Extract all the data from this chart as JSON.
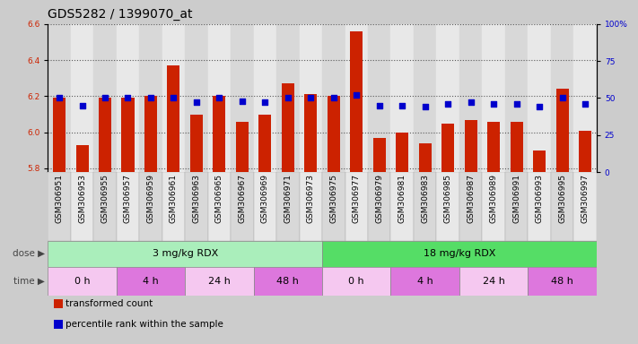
{
  "title": "GDS5282 / 1399070_at",
  "samples": [
    "GSM306951",
    "GSM306953",
    "GSM306955",
    "GSM306957",
    "GSM306959",
    "GSM306961",
    "GSM306963",
    "GSM306965",
    "GSM306967",
    "GSM306969",
    "GSM306971",
    "GSM306973",
    "GSM306975",
    "GSM306977",
    "GSM306979",
    "GSM306981",
    "GSM306983",
    "GSM306985",
    "GSM306987",
    "GSM306989",
    "GSM306991",
    "GSM306993",
    "GSM306995",
    "GSM306997"
  ],
  "bar_values": [
    6.19,
    5.93,
    6.19,
    6.19,
    6.2,
    6.37,
    6.1,
    6.2,
    6.06,
    6.1,
    6.27,
    6.21,
    6.2,
    6.56,
    5.97,
    6.0,
    5.94,
    6.05,
    6.07,
    6.06,
    6.06,
    5.9,
    6.24,
    6.01
  ],
  "dot_values": [
    50,
    45,
    50,
    50,
    50,
    50,
    47,
    50,
    48,
    47,
    50,
    50,
    50,
    52,
    45,
    45,
    44,
    46,
    47,
    46,
    46,
    44,
    50,
    46
  ],
  "ylim_left": [
    5.78,
    6.6
  ],
  "ylim_right": [
    0,
    100
  ],
  "yticks_left": [
    5.8,
    6.0,
    6.2,
    6.4,
    6.6
  ],
  "yticks_right": [
    0,
    25,
    50,
    75,
    100
  ],
  "ytick_labels_right": [
    "0",
    "25",
    "50",
    "75",
    "100%"
  ],
  "bar_color": "#cc2200",
  "dot_color": "#0000cc",
  "dose_groups": [
    {
      "label": "3 mg/kg RDX",
      "start": 0,
      "end": 12,
      "color": "#aaeebb"
    },
    {
      "label": "18 mg/kg RDX",
      "start": 12,
      "end": 24,
      "color": "#55dd66"
    }
  ],
  "time_groups": [
    {
      "label": "0 h",
      "start": 0,
      "end": 3,
      "color": "#f5c8f0"
    },
    {
      "label": "4 h",
      "start": 3,
      "end": 6,
      "color": "#dd77dd"
    },
    {
      "label": "24 h",
      "start": 6,
      "end": 9,
      "color": "#f5c8f0"
    },
    {
      "label": "48 h",
      "start": 9,
      "end": 12,
      "color": "#dd77dd"
    },
    {
      "label": "0 h",
      "start": 12,
      "end": 15,
      "color": "#f5c8f0"
    },
    {
      "label": "4 h",
      "start": 15,
      "end": 18,
      "color": "#dd77dd"
    },
    {
      "label": "24 h",
      "start": 18,
      "end": 21,
      "color": "#f5c8f0"
    },
    {
      "label": "48 h",
      "start": 21,
      "end": 24,
      "color": "#dd77dd"
    }
  ],
  "legend_items": [
    {
      "label": "transformed count",
      "color": "#cc2200"
    },
    {
      "label": "percentile rank within the sample",
      "color": "#0000cc"
    }
  ],
  "background_color": "#cccccc",
  "plot_bg_color": "#ffffff",
  "xticklabel_bg_even": "#d8d8d8",
  "xticklabel_bg_odd": "#e8e8e8",
  "title_fontsize": 10,
  "tick_fontsize": 6.5,
  "label_fontsize": 8
}
